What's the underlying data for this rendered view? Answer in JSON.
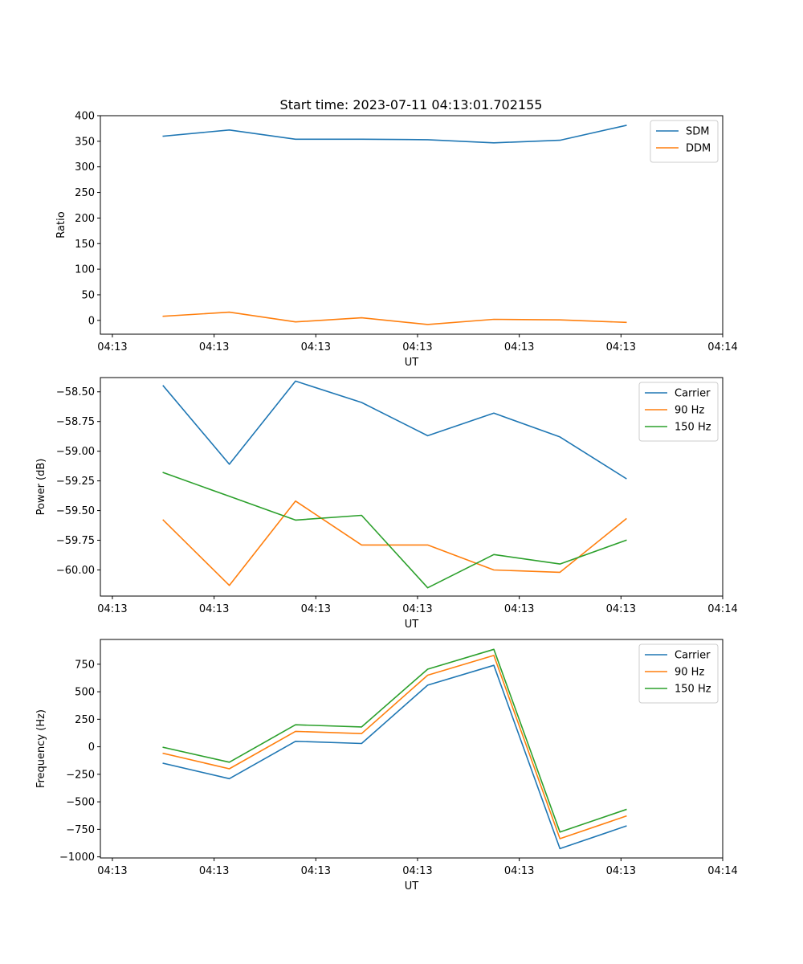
{
  "title": "Start time: 2023-07-11 04:13:01.702155",
  "colors": {
    "blue": "#1f77b4",
    "orange": "#ff7f0e",
    "green": "#2ca02c"
  },
  "chart_data": [
    {
      "type": "line",
      "title": "Start time: 2023-07-11 04:13:01.702155",
      "xlabel": "UT",
      "ylabel": "Ratio",
      "x_tick_labels": [
        "04:13",
        "04:13",
        "04:13",
        "04:13",
        "04:13",
        "04:13",
        "04:14"
      ],
      "x_tick_positions": [
        0.0,
        1.0,
        2.0,
        3.0,
        4.0,
        5.0,
        6.0
      ],
      "xlim": [
        -0.118,
        6.0
      ],
      "y_ticks": [
        0,
        50,
        100,
        150,
        200,
        250,
        300,
        350,
        400
      ],
      "ylim": [
        -27,
        400
      ],
      "legend": "top-right",
      "x": [
        0.5,
        1.15,
        1.8,
        2.45,
        3.1,
        3.75,
        4.4,
        5.05
      ],
      "series": [
        {
          "name": "SDM",
          "color": "#1f77b4",
          "values": [
            360,
            372,
            354,
            354,
            353,
            347,
            352,
            381
          ]
        },
        {
          "name": "DDM",
          "color": "#ff7f0e",
          "values": [
            8,
            16,
            -3,
            5,
            -8,
            2,
            1,
            -4
          ]
        }
      ]
    },
    {
      "type": "line",
      "xlabel": "UT",
      "ylabel": "Power (dB)",
      "x_tick_labels": [
        "04:13",
        "04:13",
        "04:13",
        "04:13",
        "04:13",
        "04:13",
        "04:14"
      ],
      "x_tick_positions": [
        0.0,
        1.0,
        2.0,
        3.0,
        4.0,
        5.0,
        6.0
      ],
      "xlim": [
        -0.118,
        6.0
      ],
      "y_ticks": [
        -60.0,
        -59.75,
        -59.5,
        -59.25,
        -59.0,
        -58.75,
        -58.5
      ],
      "y_tick_labels": [
        "−60.00",
        "−59.75",
        "−59.50",
        "−59.25",
        "−59.00",
        "−58.75",
        "−58.50"
      ],
      "ylim": [
        -60.22,
        -58.38
      ],
      "legend": "top-right",
      "x": [
        0.5,
        1.15,
        1.8,
        2.45,
        3.1,
        3.75,
        4.4,
        5.05
      ],
      "series": [
        {
          "name": "Carrier",
          "color": "#1f77b4",
          "values": [
            -58.45,
            -59.11,
            -58.41,
            -58.59,
            -58.87,
            -58.68,
            -58.88,
            -59.23
          ]
        },
        {
          "name": "90 Hz",
          "color": "#ff7f0e",
          "values": [
            -59.58,
            -60.13,
            -59.42,
            -59.79,
            -59.79,
            -60.0,
            -60.02,
            -59.57
          ]
        },
        {
          "name": "150 Hz",
          "color": "#2ca02c",
          "values": [
            -59.18,
            -59.38,
            -59.58,
            -59.54,
            -60.15,
            -59.87,
            -59.95,
            -59.75
          ]
        }
      ]
    },
    {
      "type": "line",
      "xlabel": "UT",
      "ylabel": "Frequency (Hz)",
      "x_tick_labels": [
        "04:13",
        "04:13",
        "04:13",
        "04:13",
        "04:13",
        "04:13",
        "04:14"
      ],
      "x_tick_positions": [
        0.0,
        1.0,
        2.0,
        3.0,
        4.0,
        5.0,
        6.0
      ],
      "xlim": [
        -0.118,
        6.0
      ],
      "y_ticks": [
        -1000,
        -750,
        -500,
        -250,
        0,
        250,
        500,
        750
      ],
      "y_tick_labels": [
        "−1000",
        "−750",
        "−500",
        "−250",
        "0",
        "250",
        "500",
        "750"
      ],
      "ylim": [
        -1010,
        975
      ],
      "legend": "top-right",
      "x": [
        0.5,
        1.15,
        1.8,
        2.45,
        3.1,
        3.75,
        4.4,
        5.05
      ],
      "series": [
        {
          "name": "Carrier",
          "color": "#1f77b4",
          "values": [
            -150,
            -290,
            50,
            30,
            560,
            740,
            -925,
            -720
          ]
        },
        {
          "name": "90 Hz",
          "color": "#ff7f0e",
          "values": [
            -60,
            -200,
            140,
            120,
            650,
            830,
            -835,
            -630
          ]
        },
        {
          "name": "150 Hz",
          "color": "#2ca02c",
          "values": [
            -5,
            -140,
            200,
            180,
            705,
            885,
            -775,
            -570
          ]
        }
      ]
    }
  ]
}
